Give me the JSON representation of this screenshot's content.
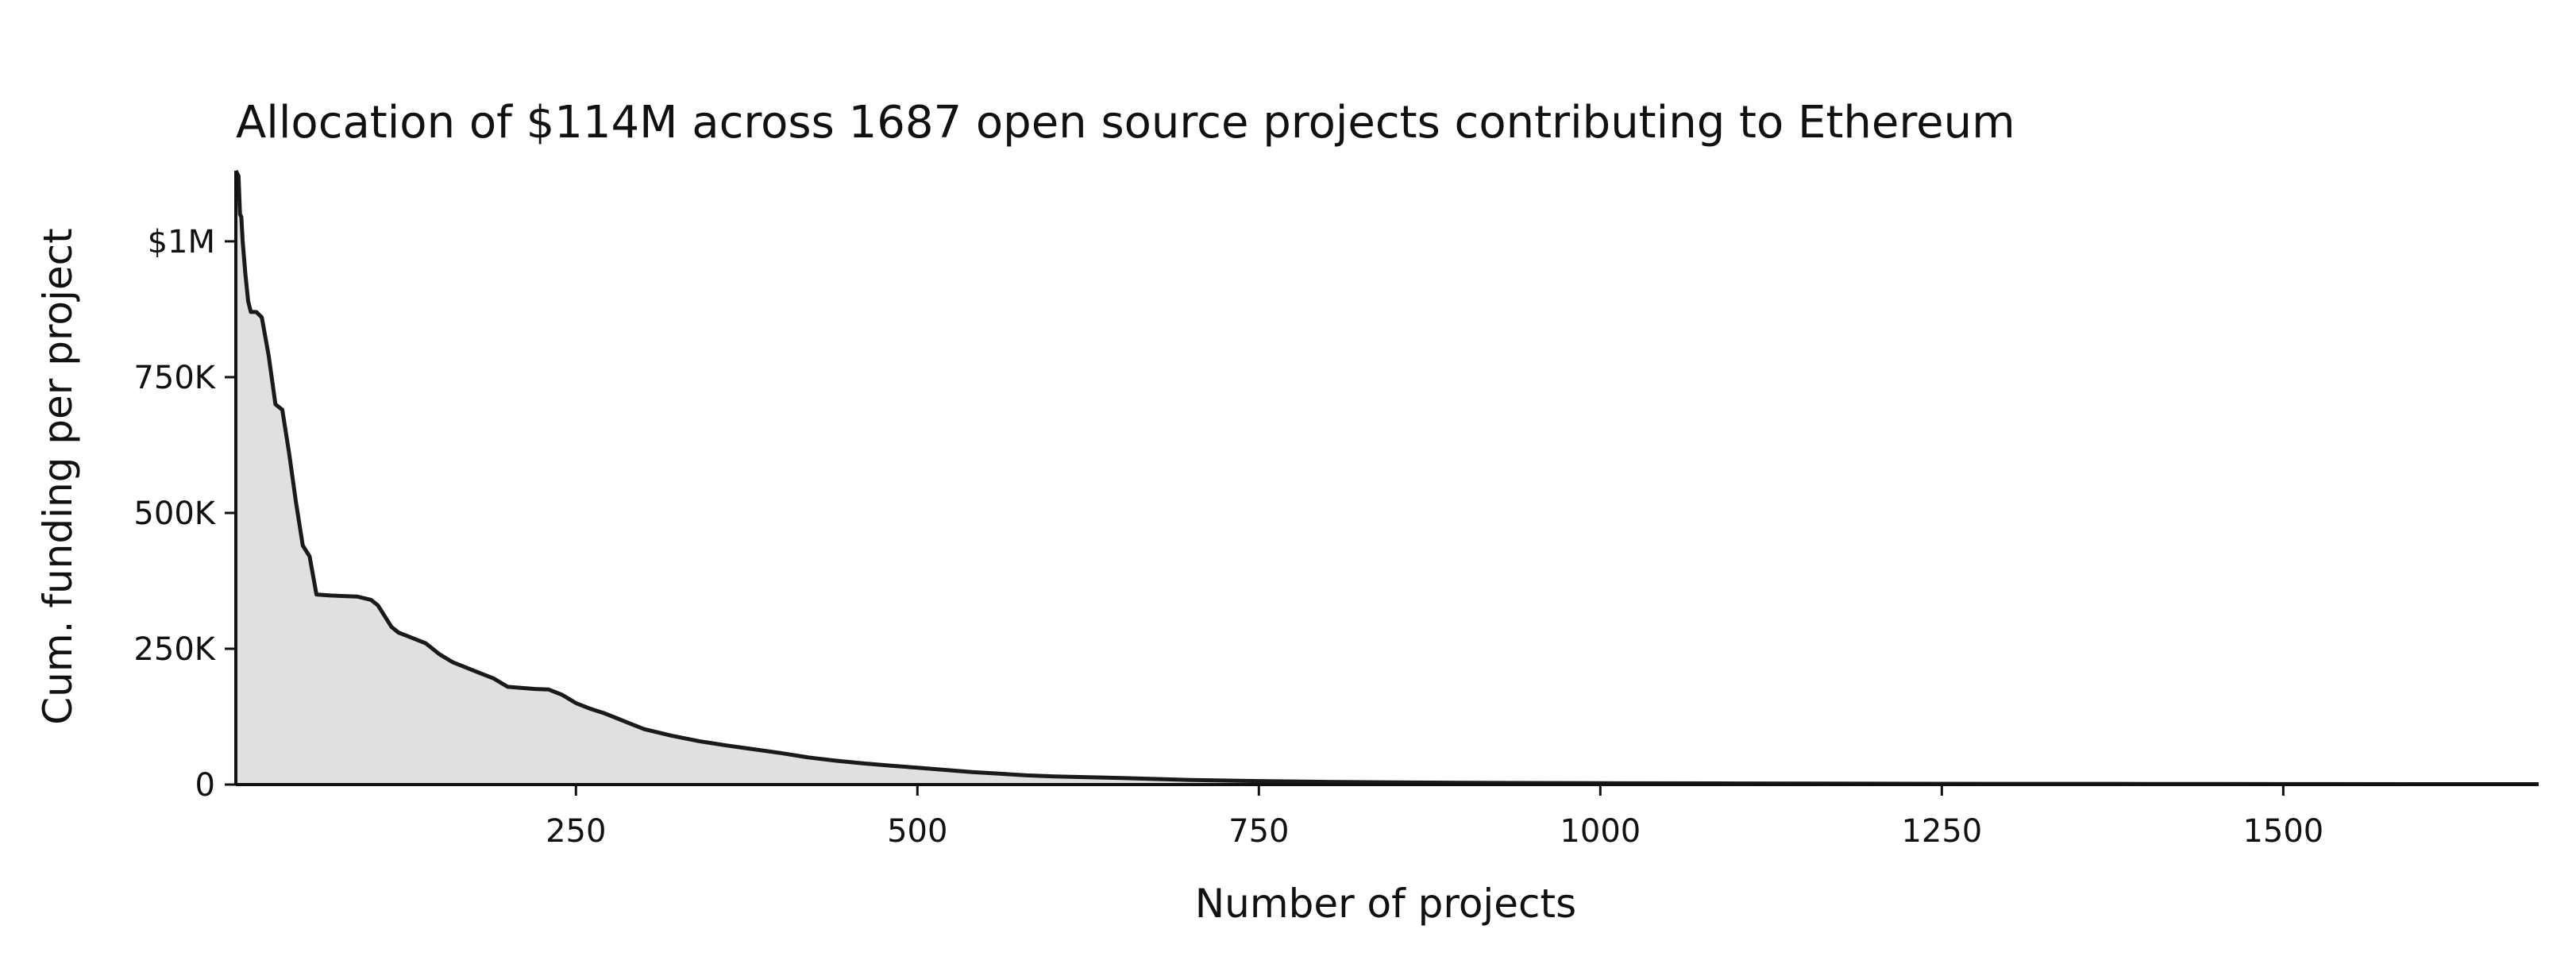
{
  "chart_data": {
    "type": "area",
    "title": "Allocation of $114M across 1687 open source projects contributing to Ethereum",
    "xlabel": "Number of projects",
    "ylabel": "Cum. funding per project",
    "xlim": [
      1,
      1687
    ],
    "ylim": [
      0,
      1130000
    ],
    "x_ticks": [
      {
        "value": 250,
        "label": "250"
      },
      {
        "value": 500,
        "label": "500"
      },
      {
        "value": 750,
        "label": "750"
      },
      {
        "value": 1000,
        "label": "1000"
      },
      {
        "value": 1250,
        "label": "1250"
      },
      {
        "value": 1500,
        "label": "1500"
      }
    ],
    "y_ticks": [
      {
        "value": 0,
        "label": "0"
      },
      {
        "value": 250000,
        "label": "250K"
      },
      {
        "value": 500000,
        "label": "500K"
      },
      {
        "value": 750000,
        "label": "750K"
      },
      {
        "value": 1000000,
        "label": "$1M"
      }
    ],
    "grid": false,
    "fill_color": "#e0e0e0",
    "line_color": "#1a1a1a",
    "series": [
      {
        "x": [
          1,
          2,
          3,
          4,
          5,
          6,
          7,
          8,
          10,
          12,
          14,
          16,
          20,
          25,
          30,
          35,
          40,
          45,
          50,
          55,
          60,
          70,
          80,
          90,
          100,
          105,
          110,
          115,
          120,
          130,
          140,
          150,
          160,
          170,
          180,
          190,
          200,
          210,
          220,
          230,
          240,
          250,
          260,
          270,
          280,
          290,
          300,
          320,
          340,
          360,
          380,
          400,
          420,
          440,
          460,
          480,
          500,
          520,
          540,
          560,
          580,
          600,
          650,
          700,
          750,
          800,
          850,
          900,
          1000,
          1100,
          1200,
          1300,
          1400,
          1500,
          1600,
          1687
        ],
        "y": [
          1130000,
          1125000,
          1120000,
          1050000,
          1045000,
          1000000,
          970000,
          940000,
          890000,
          870000,
          870000,
          870000,
          860000,
          790000,
          700000,
          690000,
          610000,
          520000,
          440000,
          420000,
          350000,
          348000,
          347000,
          346000,
          340000,
          330000,
          310000,
          290000,
          280000,
          270000,
          260000,
          240000,
          225000,
          215000,
          205000,
          195000,
          180000,
          178000,
          176000,
          175000,
          165000,
          150000,
          140000,
          132000,
          122000,
          112000,
          102000,
          90000,
          80000,
          72000,
          65000,
          58000,
          50000,
          44000,
          39000,
          35000,
          31000,
          27000,
          23000,
          20000,
          17000,
          15000,
          12000,
          8500,
          6500,
          5000,
          4000,
          3200,
          2500,
          2000,
          1600,
          1300,
          1100,
          900,
          800,
          700
        ]
      }
    ]
  }
}
